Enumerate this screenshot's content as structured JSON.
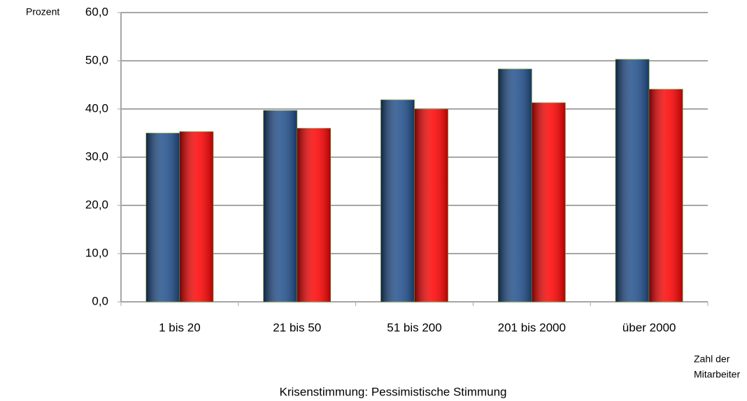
{
  "chart_data": {
    "type": "bar",
    "title": "Krisenstimmung: Pessimistische Stimmung",
    "y_label": "Prozent",
    "x_label": [
      "Zahl der",
      "Mitarbeiter"
    ],
    "categories": [
      "1 bis 20",
      "21 bis 50",
      "51 bis 200",
      "201 bis 2000",
      "über 2000"
    ],
    "series": [
      {
        "color": "#1f4e8c",
        "values": [
          35.0,
          39.7,
          41.9,
          48.3,
          50.3
        ]
      },
      {
        "color": "#ff0000",
        "values": [
          35.3,
          36.0,
          40.0,
          41.3,
          44.1
        ]
      }
    ],
    "ylim": [
      0,
      60
    ],
    "yticks": [
      {
        "value": 0,
        "label": "0,0"
      },
      {
        "value": 10,
        "label": "10,0"
      },
      {
        "value": 20,
        "label": "20,0"
      },
      {
        "value": 30,
        "label": "30,0"
      },
      {
        "value": 40,
        "label": "40,0"
      },
      {
        "value": 50,
        "label": "50,0"
      },
      {
        "value": 60,
        "label": "60,0"
      }
    ],
    "grid": true
  }
}
